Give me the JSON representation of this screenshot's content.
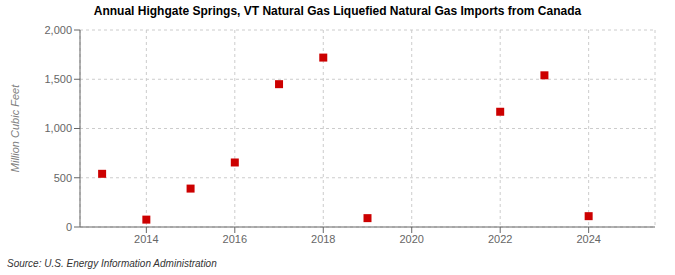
{
  "chart_data": {
    "type": "scatter",
    "title": "Annual Highgate Springs, VT Natural Gas Liquefied Natural Gas Imports from Canada",
    "ylabel": "Million Cubic Feet",
    "source": "Source: U.S. Energy Information Administration",
    "x": [
      2013,
      2014,
      2015,
      2016,
      2017,
      2018,
      2019,
      2022,
      2023,
      2024
    ],
    "values": [
      540,
      75,
      390,
      655,
      1450,
      1720,
      90,
      1170,
      1540,
      110
    ],
    "color": "#cc0000",
    "marker": "square",
    "xlim": [
      2012.5,
      2025.5
    ],
    "xticks": [
      2014,
      2016,
      2018,
      2020,
      2022,
      2024
    ],
    "ylim": [
      0,
      2000
    ],
    "yticks": [
      0,
      500,
      {
        "value": 1000,
        "label": "1,000"
      },
      {
        "value": 1500,
        "label": "1,500"
      },
      {
        "value": 2000,
        "label": "2,000"
      }
    ],
    "grid": true
  }
}
